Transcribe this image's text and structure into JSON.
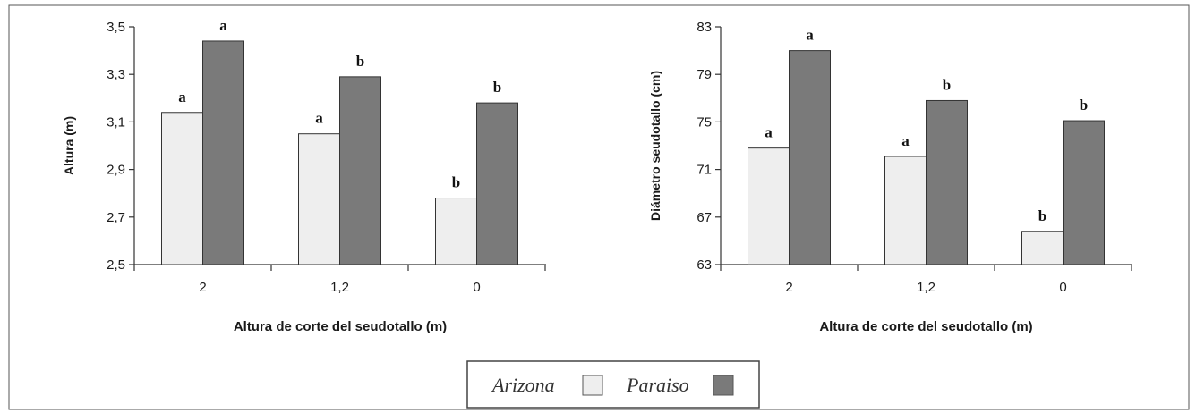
{
  "colors": {
    "Arizona": "#eeeeee",
    "Paraiso": "#7a7a7a",
    "axis": "#333333",
    "frame": "#555555"
  },
  "legend": {
    "items": [
      {
        "label": "Arizona"
      },
      {
        "label": "Paraiso"
      }
    ]
  },
  "chart_data": [
    {
      "type": "bar",
      "categories": [
        "2",
        "1,2",
        "0"
      ],
      "xlabel": "Altura de corte del seudotallo (m)",
      "ylabel": "Altura (m)",
      "ylim": [
        2.5,
        3.5
      ],
      "yticks": [
        "2,5",
        "2,7",
        "2,9",
        "3,1",
        "3,3",
        "3,5"
      ],
      "ytick_values": [
        2.5,
        2.7,
        2.9,
        3.1,
        3.3,
        3.5
      ],
      "series": [
        {
          "name": "Arizona",
          "values": [
            3.14,
            3.05,
            2.78
          ],
          "labels": [
            "a",
            "a",
            "b"
          ]
        },
        {
          "name": "Paraiso",
          "values": [
            3.44,
            3.29,
            3.18
          ],
          "labels": [
            "a",
            "b",
            "b"
          ]
        }
      ],
      "grid": false
    },
    {
      "type": "bar",
      "categories": [
        "2",
        "1,2",
        "0"
      ],
      "xlabel": "Altura de corte del seudotallo (m)",
      "ylabel": "Diámetro seudotallo (cm)",
      "ylim": [
        63,
        83
      ],
      "yticks": [
        "63",
        "67",
        "71",
        "75",
        "79",
        "83"
      ],
      "ytick_values": [
        63,
        67,
        71,
        75,
        79,
        83
      ],
      "series": [
        {
          "name": "Arizona",
          "values": [
            72.8,
            72.1,
            65.8
          ],
          "labels": [
            "a",
            "a",
            "b"
          ]
        },
        {
          "name": "Paraiso",
          "values": [
            81.0,
            76.8,
            75.1
          ],
          "labels": [
            "a",
            "b",
            "b"
          ]
        }
      ],
      "grid": false
    }
  ]
}
